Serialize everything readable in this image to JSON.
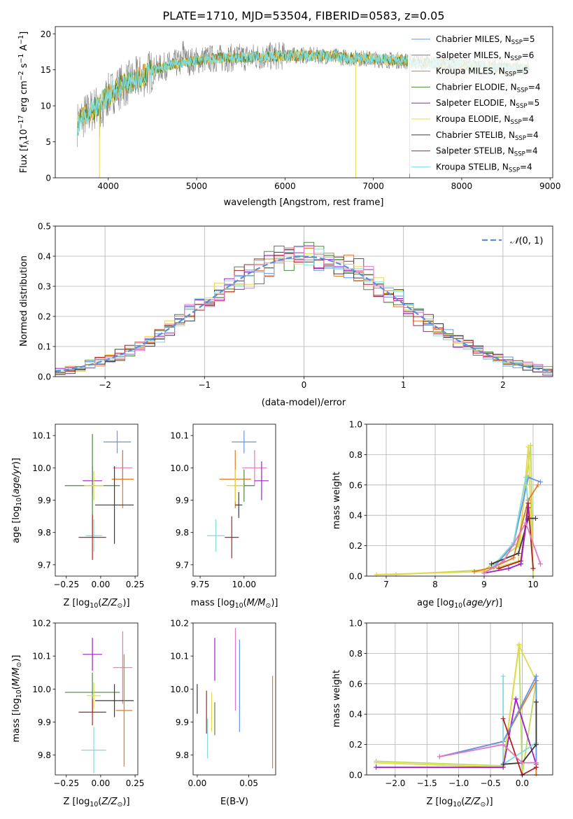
{
  "figure_title": "PLATE=1710, MJD=53504, FIBERID=0583, z=0.05",
  "colors": {
    "chabrier_miles": "#6495ed",
    "salpeter_miles": "#7f7f7f",
    "kroupa_miles": "#e07b25",
    "chabrier_elodie": "#4a8a3a",
    "salpeter_elodie": "#9e1fc0",
    "kroupa_elodie": "#e6d84a",
    "chabrier_stelib": "#3a3a3a",
    "salpeter_stelib": "#b22222",
    "kroupa_stelib": "#7fdbdb",
    "pink": "#e377c2",
    "lime": "#bcdc5a",
    "normal_curve": "#5a8fd8",
    "spectrum_data": "#808080"
  },
  "chart_data": [
    {
      "id": "spectrum",
      "type": "line",
      "title": "PLATE=1710, MJD=53504, FIBERID=0583, z=0.05",
      "xlabel": "wavelength [Angstrom, rest frame]",
      "ylabel_parts": [
        "Flux [f",
        "λ",
        "10",
        "−17",
        " erg cm",
        "−2",
        " s",
        "−1",
        " A",
        "−1",
        "]"
      ],
      "xlim": [
        3400,
        9030
      ],
      "ylim": [
        0,
        21
      ],
      "xticks": [
        4000,
        5000,
        6000,
        7000,
        8000,
        9000
      ],
      "xticklabels": [
        "4000",
        "5000",
        "6000",
        "7000",
        "8000",
        "9000"
      ],
      "yticks": [
        0,
        5,
        10,
        15,
        20
      ],
      "yticklabels": [
        "0",
        "5",
        "10",
        "15",
        "20"
      ],
      "continuum": {
        "x": [
          3650,
          3700,
          3800,
          3900,
          4000,
          4100,
          4200,
          4300,
          4400,
          4500,
          4700,
          4900,
          5100,
          5300,
          5500,
          5700,
          5900,
          6100,
          6300,
          6500,
          6700,
          6900,
          7100,
          7300,
          7500,
          7700,
          7900,
          8100,
          8300,
          8500,
          8760
        ],
        "y": [
          7.5,
          8.3,
          9.2,
          10.2,
          11.4,
          12.4,
          13.0,
          13.6,
          14.2,
          14.9,
          15.7,
          16.1,
          16.5,
          16.6,
          16.7,
          16.8,
          16.9,
          17.0,
          17.0,
          16.9,
          16.7,
          16.6,
          16.4,
          16.3,
          16.1,
          15.9,
          15.8,
          15.6,
          15.4,
          15.2,
          15.0
        ]
      },
      "legend": {
        "location": "upper right",
        "entries": [
          {
            "label": "Chabrier MILES, N",
            "sub": "SSP",
            "tail": "=5",
            "color_key": "chabrier_miles"
          },
          {
            "label": "Salpeter MILES, N",
            "sub": "SSP",
            "tail": "=6",
            "color_key": "salpeter_miles"
          },
          {
            "label": "Kroupa MILES, N",
            "sub": "SSP",
            "tail": "=5",
            "color_key": "kroupa_miles"
          },
          {
            "label": "Chabrier ELODIE, N",
            "sub": "SSP",
            "tail": "=4",
            "color_key": "chabrier_elodie"
          },
          {
            "label": "Salpeter ELODIE, N",
            "sub": "SSP",
            "tail": "=5",
            "color_key": "salpeter_elodie"
          },
          {
            "label": "Kroupa ELODIE, N",
            "sub": "SSP",
            "tail": "=4",
            "color_key": "kroupa_elodie"
          },
          {
            "label": "Chabrier STELIB, N",
            "sub": "SSP",
            "tail": "=4",
            "color_key": "chabrier_stelib"
          },
          {
            "label": "Salpeter STELIB, N",
            "sub": "SSP",
            "tail": "=4",
            "color_key": "salpeter_stelib"
          },
          {
            "label": "Kroupa STELIB, N",
            "sub": "SSP",
            "tail": "=4",
            "color_key": "kroupa_stelib"
          }
        ]
      }
    },
    {
      "id": "residuals",
      "type": "histogram",
      "xlabel": "(data-model)/error",
      "ylabel": "Normed distribution",
      "xlim": [
        -2.5,
        2.5
      ],
      "ylim": [
        0,
        0.5
      ],
      "xticks": [
        -2,
        -1,
        0,
        1,
        2
      ],
      "xticklabels": [
        "−2",
        "−1",
        "0",
        "1",
        "2"
      ],
      "yticks": [
        0,
        0.1,
        0.2,
        0.3,
        0.4,
        0.5
      ],
      "yticklabels": [
        "0.0",
        "0.1",
        "0.2",
        "0.3",
        "0.4",
        "0.5"
      ],
      "grid": true,
      "bin_width": 0.1,
      "series_color_keys": [
        "chabrier_miles",
        "kroupa_miles",
        "chabrier_elodie",
        "salpeter_elodie",
        "kroupa_elodie",
        "chabrier_stelib",
        "salpeter_stelib",
        "kroupa_stelib",
        "pink"
      ],
      "normal": {
        "label_parts": [
          "𝒩",
          "(0, 1)"
        ],
        "mean": 0,
        "sigma": 1,
        "color_key": "normal_curve"
      }
    },
    {
      "id": "age_vs_Z",
      "type": "errorbar",
      "xlabel_parts": [
        "Z [log",
        "10",
        "(",
        "Z/Z",
        "⊙",
        ")]"
      ],
      "ylabel_parts": [
        "age  [log",
        "10",
        "(",
        "age/yr",
        ")]"
      ],
      "xlim": [
        -0.33,
        0.27
      ],
      "ylim": [
        9.665,
        10.135
      ],
      "xticks": [
        -0.25,
        0,
        0.25
      ],
      "xticklabels": [
        "−0.25",
        "0.00",
        "0.25"
      ],
      "yticks": [
        9.7,
        9.8,
        9.9,
        10.0,
        10.1
      ],
      "yticklabels": [
        "9.7",
        "9.8",
        "9.9",
        "10.0",
        "10.1"
      ],
      "points": [
        {
          "x": 0.12,
          "y": 10.08,
          "xerr": 0.1,
          "yerr": 0.035,
          "color_key": "chabrier_miles"
        },
        {
          "x": 0.16,
          "y": 10.0,
          "xerr": 0.07,
          "yerr": 0.055,
          "color_key": "pink"
        },
        {
          "x": 0.16,
          "y": 9.965,
          "xerr": 0.08,
          "yerr": 0.09,
          "color_key": "kroupa_miles"
        },
        {
          "x": -0.06,
          "y": 9.96,
          "xerr": 0.07,
          "yerr": 0.045,
          "color_key": "salpeter_elodie"
        },
        {
          "x": -0.06,
          "y": 9.945,
          "xerr": 0.2,
          "yerr": 0.16,
          "color_key": "chabrier_elodie"
        },
        {
          "x": -0.05,
          "y": 9.945,
          "xerr": 0.07,
          "yerr": 0.045,
          "color_key": "kroupa_elodie"
        },
        {
          "x": 0.1,
          "y": 9.885,
          "xerr": 0.14,
          "yerr": 0.12,
          "color_key": "chabrier_stelib"
        },
        {
          "x": -0.05,
          "y": 9.79,
          "xerr": 0.06,
          "yerr": 0.05,
          "color_key": "kroupa_stelib"
        },
        {
          "x": -0.06,
          "y": 9.785,
          "xerr": 0.1,
          "yerr": 0.07,
          "color_key": "salpeter_stelib"
        }
      ]
    },
    {
      "id": "age_vs_mass",
      "type": "errorbar",
      "xlabel_parts": [
        "mass [log",
        "10",
        "(",
        "M/M",
        "⊙",
        ")]"
      ],
      "ylabel_parts": [],
      "xlim": [
        9.71,
        10.18
      ],
      "ylim": [
        9.665,
        10.135
      ],
      "xticks": [
        9.75,
        10.0
      ],
      "xticklabels": [
        "9.75",
        "10.00"
      ],
      "yticks": [
        9.7,
        9.8,
        9.9,
        10.0,
        10.1
      ],
      "yticklabels": [
        "9.7",
        "9.8",
        "9.9",
        "10.0",
        "10.1"
      ],
      "points": [
        {
          "x": 10.0,
          "y": 10.08,
          "xerr": 0.07,
          "yerr": 0.035,
          "color_key": "chabrier_miles"
        },
        {
          "x": 10.06,
          "y": 10.0,
          "xerr": 0.07,
          "yerr": 0.055,
          "color_key": "pink"
        },
        {
          "x": 9.95,
          "y": 9.965,
          "xerr": 0.09,
          "yerr": 0.09,
          "color_key": "kroupa_miles"
        },
        {
          "x": 10.1,
          "y": 9.96,
          "xerr": 0.04,
          "yerr": 0.06,
          "color_key": "salpeter_elodie"
        },
        {
          "x": 10.0,
          "y": 9.945,
          "xerr": 0.06,
          "yerr": 0.05,
          "color_key": "chabrier_elodie"
        },
        {
          "x": 9.95,
          "y": 9.945,
          "xerr": 0.05,
          "yerr": 0.05,
          "color_key": "kroupa_elodie"
        },
        {
          "x": 9.97,
          "y": 9.885,
          "xerr": 0.02,
          "yerr": 0.04,
          "color_key": "chabrier_stelib"
        },
        {
          "x": 9.84,
          "y": 9.79,
          "xerr": 0.05,
          "yerr": 0.05,
          "color_key": "kroupa_stelib"
        },
        {
          "x": 9.93,
          "y": 9.785,
          "xerr": 0.04,
          "yerr": 0.065,
          "color_key": "salpeter_stelib"
        }
      ]
    },
    {
      "id": "mass_weight_vs_age",
      "type": "line",
      "xlabel_parts": [
        "age  [log",
        "10",
        "(",
        "age/yr",
        ")]"
      ],
      "ylabel": "mass weight",
      "xlim": [
        6.6,
        10.4
      ],
      "ylim": [
        0,
        1
      ],
      "xticks": [
        7,
        8,
        9,
        10
      ],
      "xticklabels": [
        "7",
        "8",
        "9",
        "10"
      ],
      "yticks": [
        0,
        0.2,
        0.4,
        0.6,
        0.8,
        1.0
      ],
      "yticklabels": [
        "0.0",
        "0.2",
        "0.4",
        "0.6",
        "0.8",
        "1.0"
      ],
      "grid": true,
      "series": [
        {
          "color_key": "lime",
          "x": [
            6.8,
            7.2,
            9.0,
            9.7,
            9.95,
            10.0
          ],
          "y": [
            0.01,
            0.01,
            0.04,
            0.2,
            0.86,
            0.0
          ]
        },
        {
          "color_key": "kroupa_elodie",
          "x": [
            6.8,
            9.0,
            9.7,
            9.9,
            10.0
          ],
          "y": [
            0.01,
            0.03,
            0.1,
            0.85,
            0.05
          ]
        },
        {
          "color_key": "kroupa_miles",
          "x": [
            8.8,
            9.2,
            9.6,
            9.9,
            10.1
          ],
          "y": [
            0.03,
            0.06,
            0.12,
            0.5,
            0.6
          ]
        },
        {
          "color_key": "chabrier_miles",
          "x": [
            9.2,
            9.6,
            9.9,
            10.15
          ],
          "y": [
            0.06,
            0.21,
            0.65,
            0.62
          ]
        },
        {
          "color_key": "kroupa_stelib",
          "x": [
            9.2,
            9.6,
            9.85,
            10.0
          ],
          "y": [
            0.07,
            0.22,
            0.65,
            0.05
          ]
        },
        {
          "color_key": "chabrier_stelib",
          "x": [
            9.15,
            9.7,
            9.9,
            10.05
          ],
          "y": [
            0.08,
            0.15,
            0.38,
            0.38
          ]
        },
        {
          "color_key": "salpeter_stelib",
          "x": [
            9.3,
            9.75,
            9.9,
            10.0
          ],
          "y": [
            0.05,
            0.1,
            0.48,
            0.05
          ]
        },
        {
          "color_key": "salpeter_elodie",
          "x": [
            9.0,
            9.5,
            9.75,
            9.9
          ],
          "y": [
            0.02,
            0.05,
            0.08,
            0.45
          ]
        },
        {
          "color_key": "pink",
          "x": [
            9.0,
            9.4,
            9.85,
            10.15
          ],
          "y": [
            0.02,
            0.1,
            0.35,
            0.08
          ]
        }
      ]
    },
    {
      "id": "mass_vs_Z",
      "type": "errorbar",
      "xlabel_parts": [
        "Z [log",
        "10",
        "(",
        "Z/Z",
        "⊙",
        ")]"
      ],
      "ylabel_parts": [
        "mass [log",
        "10",
        "(",
        "M/M",
        "⊙",
        ")]"
      ],
      "xlim": [
        -0.33,
        0.27
      ],
      "ylim": [
        9.74,
        10.2
      ],
      "xticks": [
        -0.25,
        0,
        0.25
      ],
      "xticklabels": [
        "−0.25",
        "0.00",
        "0.25"
      ],
      "yticks": [
        9.8,
        9.9,
        10.0,
        10.1,
        10.2
      ],
      "yticklabels": [
        "9.8",
        "9.9",
        "10.0",
        "10.1",
        "10.2"
      ],
      "points": [
        {
          "x": -0.06,
          "y": 10.105,
          "xerr": 0.07,
          "yerr": 0.05,
          "color_key": "salpeter_elodie"
        },
        {
          "x": 0.16,
          "y": 10.065,
          "xerr": 0.07,
          "yerr": 0.11,
          "color_key": "pink"
        },
        {
          "x": -0.06,
          "y": 9.99,
          "xerr": 0.2,
          "yerr": 0.06,
          "color_key": "chabrier_elodie"
        },
        {
          "x": -0.05,
          "y": 9.98,
          "xerr": 0.05,
          "yerr": 0.04,
          "color_key": "kroupa_elodie"
        },
        {
          "x": 0.1,
          "y": 9.965,
          "xerr": 0.14,
          "yerr": 0.05,
          "color_key": "chabrier_stelib"
        },
        {
          "x": 0.17,
          "y": 9.935,
          "xerr": 0.06,
          "yerr": 0.17,
          "color_key": "kroupa_miles"
        },
        {
          "x": -0.06,
          "y": 9.93,
          "xerr": 0.1,
          "yerr": 0.04,
          "color_key": "salpeter_stelib"
        },
        {
          "x": -0.05,
          "y": 9.815,
          "xerr": 0.09,
          "yerr": 0.07,
          "color_key": "kroupa_stelib"
        }
      ]
    },
    {
      "id": "mass_vs_ebv",
      "type": "errorbar",
      "xlabel": "E(B-V)",
      "ylabel_parts": [],
      "xlim": [
        -0.004,
        0.076
      ],
      "ylim": [
        9.74,
        10.2
      ],
      "xticks": [
        0.0,
        0.05
      ],
      "xticklabels": [
        "0.00",
        "0.05"
      ],
      "yticks": [
        9.8,
        9.9,
        10.0,
        10.1,
        10.2
      ],
      "yticklabels": [
        "9.8",
        "9.9",
        "10.0",
        "10.1",
        "10.2"
      ],
      "points": [
        {
          "x": 0.0,
          "y": 9.97,
          "xerr": 0,
          "yerr": 0.045,
          "color_key": "chabrier_stelib"
        },
        {
          "x": 0.009,
          "y": 9.93,
          "xerr": 0,
          "yerr": 0.065,
          "color_key": "salpeter_stelib"
        },
        {
          "x": 0.01,
          "y": 9.85,
          "xerr": 0,
          "yerr": 0.06,
          "color_key": "kroupa_stelib"
        },
        {
          "x": 0.014,
          "y": 9.93,
          "xerr": 0,
          "yerr": 0.06,
          "color_key": "kroupa_elodie"
        },
        {
          "x": 0.017,
          "y": 9.91,
          "xerr": 0,
          "yerr": 0.05,
          "color_key": "chabrier_elodie"
        },
        {
          "x": 0.017,
          "y": 10.09,
          "xerr": 0,
          "yerr": 0.065,
          "color_key": "salpeter_elodie"
        },
        {
          "x": 0.037,
          "y": 10.06,
          "xerr": 0,
          "yerr": 0.125,
          "color_key": "pink"
        },
        {
          "x": 0.041,
          "y": 10.01,
          "xerr": 0,
          "yerr": 0.14,
          "color_key": "chabrier_miles"
        },
        {
          "x": 0.073,
          "y": 9.9,
          "xerr": 0,
          "yerr": 0.14,
          "color_key": "kroupa_miles"
        }
      ]
    },
    {
      "id": "mass_weight_vs_Z",
      "type": "line",
      "xlabel_parts": [
        "Z [log",
        "10",
        "(",
        "Z/Z",
        "⊙",
        ")]"
      ],
      "ylabel": "mass weight",
      "xlim": [
        -2.45,
        0.48
      ],
      "ylim": [
        0,
        1
      ],
      "xticks": [
        -2.0,
        -1.5,
        -1.0,
        -0.5,
        0.0
      ],
      "xticklabels": [
        "−2.0",
        "−1.5",
        "−1.0",
        "−0.5",
        "0.0"
      ],
      "yticks": [
        0,
        0.2,
        0.4,
        0.6,
        0.8,
        1.0
      ],
      "yticklabels": [
        "0.0",
        "0.2",
        "0.4",
        "0.6",
        "0.8",
        "1.0"
      ],
      "grid": true,
      "series": [
        {
          "color_key": "lime",
          "x": [
            -2.3,
            -0.3,
            -0.05,
            0.0,
            0.22
          ],
          "y": [
            0.09,
            0.06,
            0.86,
            0.0,
            0.62
          ]
        },
        {
          "color_key": "kroupa_elodie",
          "x": [
            -2.3,
            -0.3,
            -0.05,
            0.22
          ],
          "y": [
            0.08,
            0.05,
            0.85,
            0.62
          ]
        },
        {
          "color_key": "salpeter_elodie",
          "x": [
            -2.3,
            -0.3,
            -0.1,
            0.22
          ],
          "y": [
            0.05,
            0.05,
            0.5,
            0.07
          ]
        },
        {
          "color_key": "kroupa_miles",
          "x": [
            -1.3,
            -0.3,
            0.22,
            0.22
          ],
          "y": [
            0.12,
            0.22,
            0.62,
            0.0
          ]
        },
        {
          "color_key": "chabrier_miles",
          "x": [
            -1.3,
            -0.3,
            0.22,
            0.22
          ],
          "y": [
            0.12,
            0.22,
            0.65,
            0.05
          ]
        },
        {
          "color_key": "kroupa_stelib",
          "x": [
            -0.3,
            -0.3,
            0.22
          ],
          "y": [
            0.65,
            0.07,
            0.21
          ]
        },
        {
          "color_key": "chabrier_stelib",
          "x": [
            -0.3,
            0.0,
            0.22,
            0.22
          ],
          "y": [
            0.07,
            0.08,
            0.2,
            0.48
          ]
        },
        {
          "color_key": "salpeter_stelib",
          "x": [
            -0.3,
            0.0,
            0.22
          ],
          "y": [
            0.37,
            0.0,
            0.05
          ]
        },
        {
          "color_key": "pink",
          "x": [
            -1.3,
            -0.3,
            0.0,
            0.22
          ],
          "y": [
            0.12,
            0.2,
            0.08,
            0.08
          ]
        }
      ]
    }
  ]
}
